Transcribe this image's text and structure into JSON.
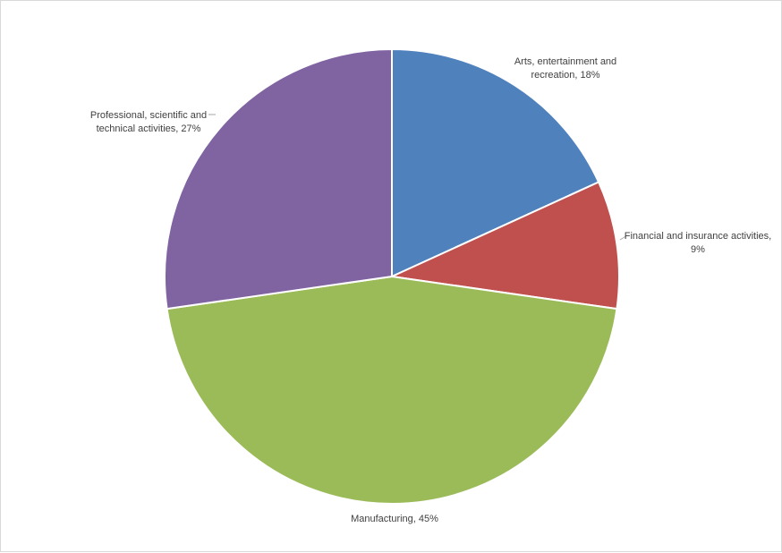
{
  "chart_data": {
    "type": "pie",
    "title": "",
    "categories": [
      "Arts, entertainment and recreation",
      "Financial and insurance activities",
      "Manufacturing",
      "Professional, scientific and technical activities"
    ],
    "values": [
      18,
      9,
      45,
      27
    ],
    "unit": "%",
    "start": "12 o'clock",
    "direction": "clockwise",
    "legend": "none",
    "colors": [
      "#4F81BD",
      "#C0504D",
      "#9BBB59",
      "#8064A2"
    ],
    "data_labels": [
      [
        "Arts, entertainment and",
        "recreation, 18%"
      ],
      [
        "Financial and insurance activities,",
        "9%"
      ],
      [
        "Manufacturing, 45%"
      ],
      [
        "Professional, scientific and",
        "technical activities, 27%"
      ]
    ]
  }
}
